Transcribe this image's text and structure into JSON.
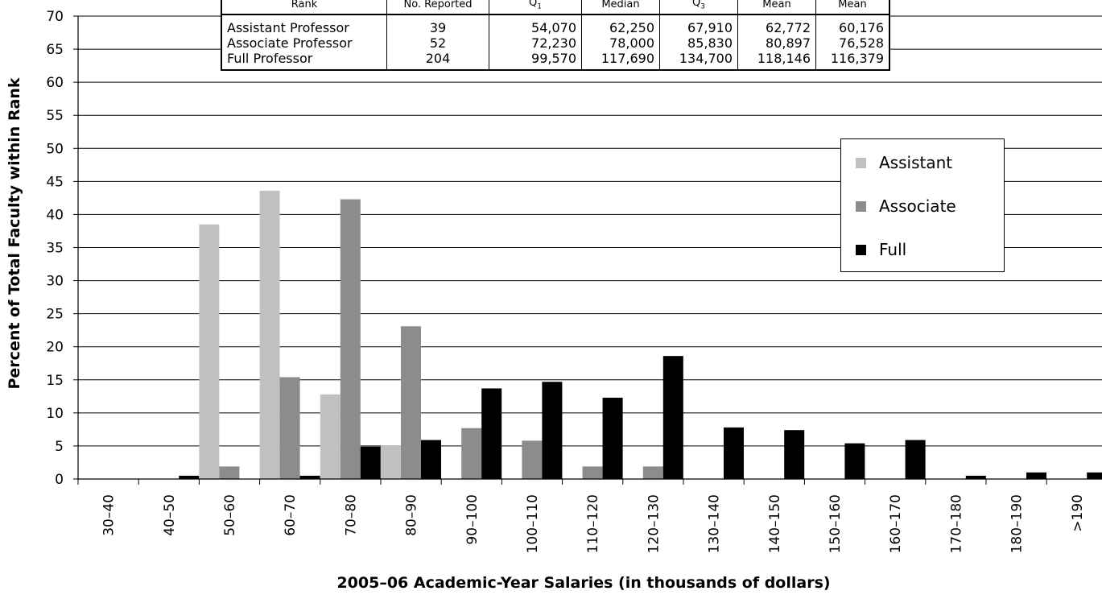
{
  "chart_data": {
    "type": "bar",
    "xlabel": "2005–06 Academic-Year Salaries (in thousands of dollars)",
    "ylabel": "Percent of Total Faculty within Rank",
    "ylim": [
      0,
      70
    ],
    "yticks": [
      0,
      5,
      10,
      15,
      20,
      25,
      30,
      35,
      40,
      45,
      50,
      55,
      60,
      65,
      70
    ],
    "grid": true,
    "legend_position": "right",
    "categories": [
      "30–40",
      "40–50",
      "50–60",
      "60–70",
      "70–80",
      "80–90",
      "90–100",
      "100–110",
      "110–120",
      "120–130",
      "130–140",
      "140–150",
      "150–160",
      "160–170",
      "170–180",
      "180–190",
      ">190"
    ],
    "series": [
      {
        "name": "Assistant",
        "color": "#c0c0c0",
        "values": [
          0,
          0,
          38.5,
          43.6,
          12.8,
          5.1,
          0,
          0,
          0,
          0,
          0,
          0,
          0,
          0,
          0,
          0,
          0
        ]
      },
      {
        "name": "Associate",
        "color": "#8c8c8c",
        "values": [
          0,
          0,
          1.9,
          15.4,
          42.3,
          23.1,
          7.7,
          5.8,
          1.9,
          1.9,
          0,
          0,
          0,
          0,
          0,
          0,
          0
        ]
      },
      {
        "name": "Full",
        "color": "#000000",
        "values": [
          0,
          0.5,
          0,
          0.5,
          4.9,
          5.9,
          13.7,
          14.7,
          12.3,
          18.6,
          7.8,
          7.4,
          5.4,
          5.9,
          0.5,
          1.0,
          1.0
        ]
      }
    ]
  },
  "stats_table": {
    "headers": {
      "rank": "Rank",
      "no_reported": "No. Reported",
      "q1": "Q",
      "q1_sub": "1",
      "median": "Median",
      "q3": "Q",
      "q3_sub": "3",
      "mean": "Mean",
      "mean2": "Mean"
    },
    "rows": [
      {
        "rank": "Assistant Professor",
        "no_reported": "39",
        "q1": "54,070",
        "median": "62,250",
        "q3": "67,910",
        "mean": "62,772",
        "mean2": "60,176"
      },
      {
        "rank": "Associate Professor",
        "no_reported": "52",
        "q1": "72,230",
        "median": "78,000",
        "q3": "85,830",
        "mean": "80,897",
        "mean2": "76,528"
      },
      {
        "rank": "Full Professor",
        "no_reported": "204",
        "q1": "99,570",
        "median": "117,690",
        "q3": "134,700",
        "mean": "118,146",
        "mean2": "116,379"
      }
    ]
  }
}
